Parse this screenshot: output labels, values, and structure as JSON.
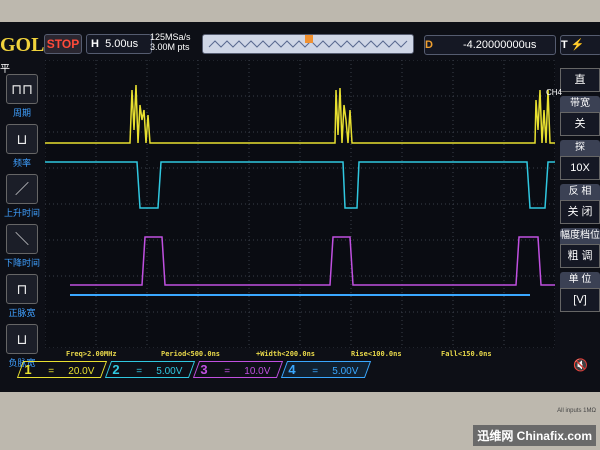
{
  "header": {
    "brand": "GOL",
    "run_state": "STOP",
    "timebase_label": "H",
    "timebase": "5.00us",
    "sample_rate": "125MSa/s",
    "memory_depth": "3.00M pts",
    "delay_label": "D",
    "delay": "-4.20000000us",
    "trigger_label": "T"
  },
  "left_menu": {
    "title": "平",
    "items": [
      {
        "label": "周期",
        "icon": "period-icon"
      },
      {
        "label": "频率",
        "icon": "frequency-icon"
      },
      {
        "label": "上升时间",
        "icon": "rise-time-icon"
      },
      {
        "label": "下降时间",
        "icon": "fall-time-icon"
      },
      {
        "label": "正脉宽",
        "icon": "positive-width-icon"
      },
      {
        "label": "负脉宽",
        "icon": "negative-width-icon"
      }
    ]
  },
  "right_menu": {
    "channel": "CH4",
    "items": [
      {
        "header": "",
        "value": "直"
      },
      {
        "header": "带宽",
        "value": "关"
      },
      {
        "header": "探",
        "value": "10X"
      },
      {
        "header": "反 相",
        "value": "关 闭"
      },
      {
        "header": "幅度档位",
        "value": "粗 调"
      },
      {
        "header": "单 位",
        "value": "[V]"
      }
    ]
  },
  "measurements": [
    "Freq>2.00MHz",
    "Period<500.0ns",
    "+Width<200.0ns",
    "Rise<100.0ns",
    "Fall<150.0ns"
  ],
  "channels": [
    {
      "num": "1",
      "coupling": "=",
      "scale": "20.0V",
      "color": "#e8e030"
    },
    {
      "num": "2",
      "coupling": "=",
      "scale": "5.00V",
      "color": "#30c8e0"
    },
    {
      "num": "3",
      "coupling": "=",
      "scale": "10.0V",
      "color": "#c050e0"
    },
    {
      "num": "4",
      "coupling": "=",
      "scale": "5.00V",
      "color": "#3aa8ff"
    }
  ],
  "bezel_text": "All inputs 1MΩ",
  "watermark": "迅维网 Chinafix.com"
}
